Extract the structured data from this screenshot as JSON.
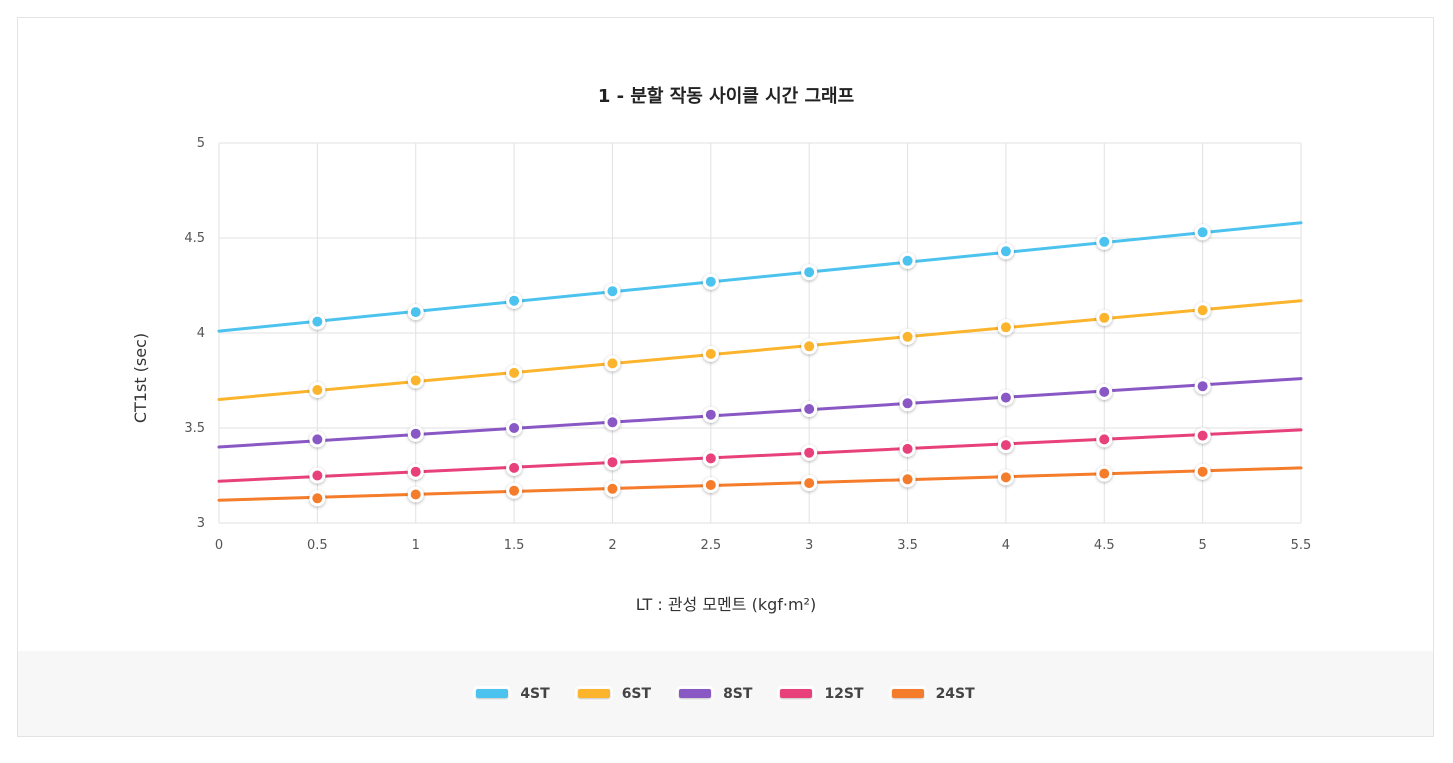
{
  "chart_data": {
    "type": "line",
    "title": "1 - 분할 작동 사이클 시간 그래프",
    "xlabel": "LT : 관성 모멘트 (kgf·m²)",
    "ylabel": "CT1st (sec)",
    "xlim": [
      0,
      5.5
    ],
    "ylim": [
      3,
      5
    ],
    "xticks": [
      "0",
      "0.5",
      "1",
      "1.5",
      "2",
      "2.5",
      "3",
      "3.5",
      "4",
      "4.5",
      "5",
      "5.5"
    ],
    "yticks": [
      "3",
      "3.5",
      "4",
      "4.5",
      "5"
    ],
    "grid": true,
    "legend_position": "bottom",
    "x_points": [
      0.5,
      1,
      1.5,
      2,
      2.5,
      3,
      3.5,
      4,
      4.5,
      5
    ],
    "series": [
      {
        "name": "4ST",
        "color": "#4bc3ee",
        "start": 4.01,
        "end": 4.58,
        "values": [
          4.06,
          4.11,
          4.17,
          4.22,
          4.27,
          4.32,
          4.38,
          4.43,
          4.48,
          4.53
        ]
      },
      {
        "name": "6ST",
        "color": "#fbb42c",
        "start": 3.65,
        "end": 4.17,
        "values": [
          3.7,
          3.75,
          3.79,
          3.84,
          3.89,
          3.93,
          3.98,
          4.03,
          4.08,
          4.12
        ]
      },
      {
        "name": "8ST",
        "color": "#8a58c4",
        "start": 3.4,
        "end": 3.76,
        "values": [
          3.44,
          3.47,
          3.5,
          3.53,
          3.57,
          3.6,
          3.63,
          3.66,
          3.69,
          3.72
        ]
      },
      {
        "name": "12ST",
        "color": "#e8407a",
        "start": 3.22,
        "end": 3.49,
        "values": [
          3.25,
          3.27,
          3.29,
          3.32,
          3.34,
          3.37,
          3.39,
          3.41,
          3.44,
          3.46
        ]
      },
      {
        "name": "24ST",
        "color": "#f57c2a",
        "start": 3.12,
        "end": 3.29,
        "values": [
          3.13,
          3.15,
          3.17,
          3.18,
          3.2,
          3.21,
          3.23,
          3.24,
          3.26,
          3.27
        ]
      }
    ]
  }
}
